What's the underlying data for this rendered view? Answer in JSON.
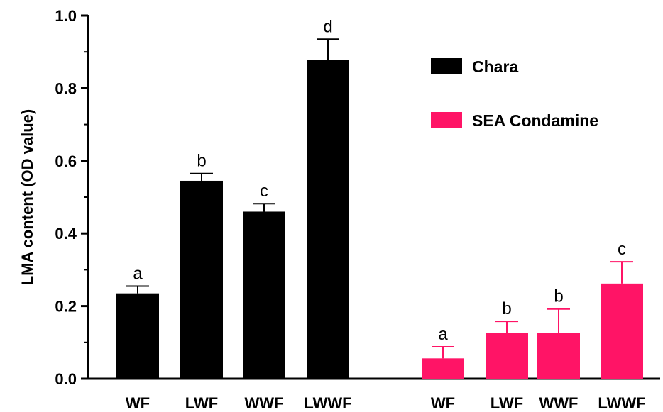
{
  "chart_data": {
    "type": "bar",
    "title": "",
    "xlabel": "",
    "ylabel": "LMA content (OD value)",
    "ylim": [
      0,
      1.0
    ],
    "yticks": [
      "0.0",
      "0.2",
      "0.4",
      "0.6",
      "0.8",
      "1.0"
    ],
    "grid": false,
    "legend_position": "top-right",
    "categories": [
      "WF",
      "LWF",
      "WWF",
      "LWWF"
    ],
    "series": [
      {
        "name": "Chara",
        "color": "#000000",
        "values": [
          0.235,
          0.545,
          0.46,
          0.877
        ],
        "errors": [
          0.02,
          0.02,
          0.022,
          0.058
        ],
        "significance": [
          "a",
          "b",
          "c",
          "d"
        ]
      },
      {
        "name": "SEA Condamine",
        "color": "#ff1466",
        "values": [
          0.056,
          0.126,
          0.126,
          0.262
        ],
        "errors": [
          0.032,
          0.032,
          0.066,
          0.06
        ],
        "significance": [
          "a",
          "b",
          "b",
          "c"
        ]
      }
    ]
  }
}
